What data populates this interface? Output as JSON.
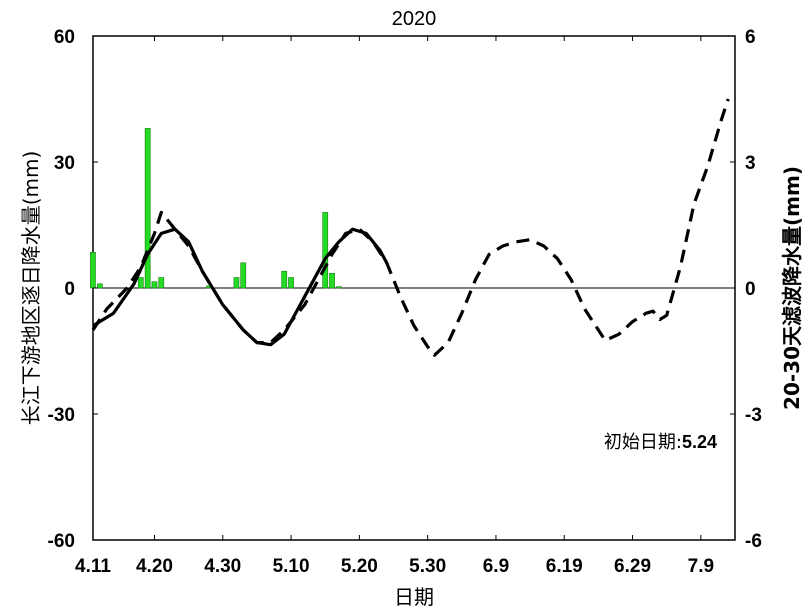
{
  "chart_data": {
    "type": "bar+line",
    "title": "2020",
    "xlabel": "日期",
    "ylabel_left": "长江下游地区逐日降水量(mm)",
    "ylabel_right": "20-30天滤波降水量(mm)",
    "annotation": {
      "label": "初始日期:",
      "value": "5.24"
    },
    "x_range_days": [
      0,
      94
    ],
    "x_ticks": [
      {
        "day": 0,
        "label": "4.11"
      },
      {
        "day": 9,
        "label": "4.20"
      },
      {
        "day": 19,
        "label": "4.30"
      },
      {
        "day": 29,
        "label": "5.10"
      },
      {
        "day": 39,
        "label": "5.20"
      },
      {
        "day": 49,
        "label": "5.30"
      },
      {
        "day": 59,
        "label": "6.9"
      },
      {
        "day": 69,
        "label": "6.19"
      },
      {
        "day": 79,
        "label": "6.29"
      },
      {
        "day": 89,
        "label": "7.9"
      }
    ],
    "y_left": {
      "range": [
        -60,
        60
      ],
      "ticks": [
        "-60",
        "-30",
        "0",
        "30",
        "60"
      ]
    },
    "y_right": {
      "range": [
        -6,
        6
      ],
      "ticks": [
        "-6",
        "-3",
        "0",
        "3",
        "6"
      ]
    },
    "series": [
      {
        "type": "bar",
        "axis": "left",
        "color": "#22dd22",
        "points": [
          [
            0,
            8.5
          ],
          [
            1,
            1
          ],
          [
            7,
            2.5
          ],
          [
            8,
            38
          ],
          [
            9,
            1.5
          ],
          [
            10,
            2.5
          ],
          [
            17,
            0.5
          ],
          [
            21,
            2.5
          ],
          [
            22,
            6
          ],
          [
            28,
            4
          ],
          [
            29,
            2.5
          ],
          [
            34,
            18
          ],
          [
            35,
            3.5
          ],
          [
            36,
            0.3
          ]
        ]
      },
      {
        "type": "line",
        "style": "solid",
        "axis": "right",
        "color": "#000000",
        "points": [
          [
            0,
            -0.9
          ],
          [
            3,
            -0.6
          ],
          [
            6,
            0.1
          ],
          [
            8,
            0.8
          ],
          [
            10,
            1.3
          ],
          [
            12,
            1.4
          ],
          [
            14,
            1.1
          ],
          [
            16,
            0.4
          ],
          [
            19,
            -0.4
          ],
          [
            22,
            -1.0
          ],
          [
            24,
            -1.3
          ],
          [
            26,
            -1.35
          ],
          [
            28,
            -1.1
          ],
          [
            30,
            -0.5
          ],
          [
            32,
            0.1
          ],
          [
            34,
            0.7
          ],
          [
            36,
            1.1
          ],
          [
            38,
            1.4
          ],
          [
            40,
            1.3
          ],
          [
            42,
            0.9
          ],
          [
            43,
            0.6
          ]
        ]
      },
      {
        "type": "line",
        "style": "dashed",
        "axis": "right",
        "color": "#000000",
        "points": [
          [
            0,
            -1.0
          ],
          [
            2,
            -0.5
          ],
          [
            5,
            0.0
          ],
          [
            7,
            0.5
          ],
          [
            9,
            1.3
          ],
          [
            10,
            1.8
          ],
          [
            12,
            1.4
          ],
          [
            14,
            1.0
          ],
          [
            16,
            0.4
          ],
          [
            19,
            -0.4
          ],
          [
            22,
            -1.0
          ],
          [
            24,
            -1.3
          ],
          [
            26,
            -1.3
          ],
          [
            28,
            -1.0
          ],
          [
            31,
            -0.4
          ],
          [
            33,
            0.2
          ],
          [
            35,
            0.8
          ],
          [
            37,
            1.3
          ],
          [
            39,
            1.4
          ],
          [
            41,
            1.1
          ],
          [
            43,
            0.6
          ],
          [
            45,
            -0.2
          ],
          [
            47,
            -0.9
          ],
          [
            49,
            -1.4
          ],
          [
            50,
            -1.6
          ],
          [
            52,
            -1.3
          ],
          [
            54,
            -0.6
          ],
          [
            56,
            0.2
          ],
          [
            58,
            0.8
          ],
          [
            60,
            1.0
          ],
          [
            62,
            1.1
          ],
          [
            64,
            1.15
          ],
          [
            66,
            1.0
          ],
          [
            68,
            0.7
          ],
          [
            70,
            0.2
          ],
          [
            72,
            -0.5
          ],
          [
            74,
            -1.0
          ],
          [
            75,
            -1.25
          ],
          [
            77,
            -1.1
          ],
          [
            79,
            -0.8
          ],
          [
            81,
            -0.6
          ],
          [
            82,
            -0.55
          ],
          [
            83,
            -0.75
          ],
          [
            84,
            -0.65
          ],
          [
            86,
            0.5
          ],
          [
            88,
            2.0
          ],
          [
            90,
            2.9
          ],
          [
            92,
            4.0
          ],
          [
            93,
            4.5
          ]
        ]
      }
    ]
  }
}
